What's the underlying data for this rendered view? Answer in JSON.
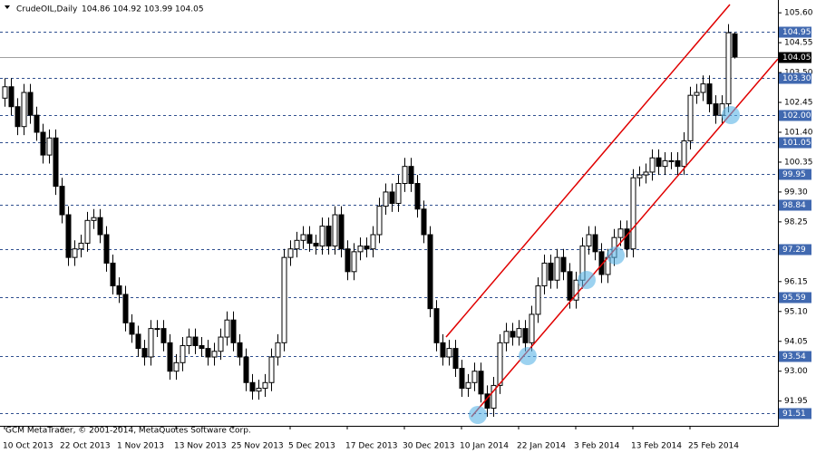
{
  "chart_data": {
    "type": "candlestick",
    "title": "CrudeOIL,Daily",
    "subtitle": "104.86 104.92 103.99 104.05",
    "footer": "GCM MetaTrader, © 2001-2014, MetaQuotes Software Corp.",
    "open": [
      102.6,
      103.0,
      102.3,
      101.6,
      102.8,
      102.0,
      101.4,
      100.6,
      101.2,
      99.5,
      98.5,
      97.0,
      97.3,
      97.5,
      98.3,
      98.4,
      97.8,
      96.8,
      96.0,
      95.7,
      94.7,
      94.3,
      93.8,
      93.5,
      94.5,
      94.5,
      94.0,
      93.0,
      93.3,
      93.9,
      94.2,
      93.9,
      93.8,
      93.5,
      93.7,
      94.2,
      94.8,
      94.0,
      93.5,
      92.6,
      92.3,
      92.4,
      92.6,
      93.5,
      94.0,
      97.0,
      97.3,
      97.6,
      97.8,
      97.5,
      97.4,
      98.1,
      97.4,
      98.5,
      97.3,
      96.5,
      97.2,
      97.4,
      97.3,
      97.8,
      98.8,
      99.3,
      98.9,
      99.6,
      100.2,
      99.6,
      98.7,
      97.8,
      95.2,
      94.0,
      93.5,
      93.8,
      93.1,
      92.4,
      92.6,
      93.0,
      92.2,
      91.7,
      92.5,
      94.0,
      94.4,
      94.2,
      94.5,
      94.0,
      95.0,
      96.0,
      96.8,
      96.2,
      97.0,
      96.5,
      95.5,
      96.2,
      97.4,
      97.8,
      97.2,
      96.4,
      97.0,
      97.7,
      98.0,
      97.3,
      99.8,
      99.9,
      100.0,
      100.5,
      100.2,
      100.4,
      100.4,
      100.2,
      101.1,
      102.7,
      102.8,
      103.1,
      102.4,
      102.0,
      102.4,
      104.86
    ],
    "high": [
      103.3,
      103.3,
      102.6,
      103.1,
      103.1,
      102.3,
      101.7,
      101.5,
      101.5,
      99.8,
      98.8,
      97.6,
      97.8,
      98.6,
      98.7,
      98.7,
      98.1,
      97.1,
      96.3,
      96.0,
      95.0,
      94.6,
      94.1,
      94.8,
      94.8,
      94.8,
      94.3,
      93.6,
      94.2,
      94.5,
      94.5,
      94.2,
      94.1,
      94.0,
      94.5,
      95.1,
      95.1,
      94.3,
      93.8,
      92.9,
      92.7,
      92.9,
      93.8,
      94.3,
      97.3,
      97.6,
      97.9,
      98.1,
      98.1,
      97.8,
      98.4,
      98.4,
      98.8,
      98.8,
      97.6,
      97.5,
      97.7,
      97.7,
      98.1,
      99.1,
      99.6,
      99.6,
      99.9,
      100.5,
      100.5,
      99.9,
      99.0,
      98.1,
      95.5,
      94.3,
      94.1,
      94.1,
      93.4,
      92.9,
      93.3,
      93.3,
      92.5,
      92.8,
      94.3,
      94.7,
      94.7,
      94.8,
      94.8,
      95.3,
      96.3,
      97.1,
      97.1,
      97.3,
      97.3,
      96.8,
      96.5,
      97.7,
      98.1,
      98.1,
      97.5,
      97.3,
      98.0,
      98.3,
      98.3,
      100.1,
      100.2,
      100.3,
      100.8,
      100.8,
      100.7,
      100.7,
      100.7,
      101.4,
      103.0,
      103.1,
      103.4,
      103.4,
      102.7,
      102.7,
      105.2,
      104.92
    ],
    "low": [
      102.3,
      102.0,
      101.3,
      101.3,
      101.7,
      101.1,
      100.3,
      100.3,
      99.2,
      98.2,
      96.7,
      96.7,
      97.0,
      97.2,
      98.0,
      97.5,
      96.5,
      95.7,
      95.4,
      94.4,
      94.0,
      93.5,
      93.2,
      93.2,
      94.2,
      93.7,
      92.7,
      92.7,
      93.0,
      93.6,
      93.6,
      93.5,
      93.2,
      93.2,
      93.4,
      93.9,
      93.7,
      93.2,
      92.3,
      92.0,
      92.0,
      92.1,
      92.3,
      93.2,
      93.7,
      96.7,
      97.0,
      97.3,
      97.2,
      97.1,
      97.1,
      97.1,
      97.1,
      97.0,
      96.2,
      96.2,
      96.9,
      97.0,
      97.0,
      97.5,
      98.5,
      98.6,
      98.6,
      99.3,
      99.3,
      98.4,
      97.5,
      94.9,
      93.7,
      93.2,
      93.2,
      92.8,
      92.1,
      92.1,
      92.3,
      91.9,
      91.4,
      91.4,
      92.2,
      93.7,
      93.9,
      93.9,
      93.7,
      93.7,
      94.7,
      95.7,
      95.9,
      95.9,
      96.2,
      95.2,
      95.2,
      95.9,
      97.1,
      96.9,
      96.1,
      96.1,
      96.7,
      97.4,
      97.0,
      97.0,
      99.5,
      99.6,
      99.7,
      99.9,
      99.9,
      100.1,
      99.9,
      99.9,
      100.8,
      102.4,
      102.5,
      102.1,
      101.7,
      101.7,
      102.1,
      103.99
    ],
    "close": [
      103.0,
      102.3,
      101.6,
      102.8,
      102.0,
      101.4,
      100.6,
      101.2,
      99.5,
      98.5,
      97.0,
      97.3,
      97.5,
      98.3,
      98.4,
      97.8,
      96.8,
      96.0,
      95.7,
      94.7,
      94.3,
      93.8,
      93.5,
      94.5,
      94.5,
      94.0,
      93.0,
      93.3,
      93.9,
      94.2,
      93.9,
      93.8,
      93.5,
      93.7,
      94.2,
      94.8,
      94.0,
      93.5,
      92.6,
      92.3,
      92.4,
      92.6,
      93.5,
      94.0,
      97.0,
      97.3,
      97.6,
      97.8,
      97.5,
      97.4,
      98.1,
      97.4,
      98.5,
      97.3,
      96.5,
      97.2,
      97.4,
      97.3,
      97.8,
      98.8,
      99.3,
      98.9,
      99.6,
      100.2,
      99.6,
      98.7,
      97.8,
      95.2,
      94.0,
      93.5,
      93.8,
      93.1,
      92.4,
      92.6,
      93.0,
      92.2,
      91.7,
      92.5,
      94.0,
      94.4,
      94.2,
      94.5,
      94.0,
      95.0,
      96.0,
      96.8,
      96.2,
      97.0,
      96.5,
      95.5,
      96.2,
      97.4,
      97.8,
      97.2,
      96.4,
      97.0,
      97.7,
      98.0,
      97.3,
      99.8,
      99.9,
      100.0,
      100.5,
      100.2,
      100.4,
      100.4,
      100.2,
      101.1,
      102.7,
      102.8,
      103.1,
      102.4,
      102.0,
      102.4,
      104.9,
      104.05
    ],
    "up_color": "#ffffff",
    "down_color": "#000000",
    "ylim": [
      91.08,
      106.05
    ],
    "yticks": [
      {
        "value": 105.6,
        "label": "105.60"
      },
      104.55,
      {
        "value": 103.5,
        "label": "103.50"
      },
      102.45,
      {
        "value": 101.4,
        "label": "101.40"
      },
      100.35,
      {
        "value": 99.3,
        "label": "99.30"
      },
      98.25,
      {
        "value": 97.2,
        "label": "97.20"
      },
      96.15,
      {
        "value": 95.1,
        "label": "95.10"
      },
      94.05,
      {
        "value": 93.0,
        "label": "93.00"
      },
      91.95
    ],
    "levels": [
      104.95,
      {
        "value": 103.3,
        "label": "103.30"
      },
      {
        "value": 102.0,
        "label": "102.00"
      },
      101.05,
      99.95,
      98.84,
      97.29,
      95.59,
      93.54,
      91.51
    ],
    "current_price": 104.05,
    "xticks": [
      {
        "value": 0,
        "label": "10 Oct 2013"
      },
      {
        "value": 9,
        "label": "22 Oct 2013"
      },
      {
        "value": 18,
        "label": "1 Nov 2013"
      },
      {
        "value": 27,
        "label": "13 Nov 2013"
      },
      {
        "value": 36,
        "label": "25 Nov 2013"
      },
      {
        "value": 45,
        "label": "5 Dec 2013"
      },
      {
        "value": 54,
        "label": "17 Dec 2013"
      },
      {
        "value": 63,
        "label": "30 Dec 2013"
      },
      {
        "value": 72,
        "label": "10 Jan 2014"
      },
      {
        "value": 81,
        "label": "22 Jan 2014"
      },
      {
        "value": 90,
        "label": "3 Feb 2014"
      },
      {
        "value": 99,
        "label": "13 Feb 2014"
      },
      {
        "value": 108,
        "label": "25 Feb 2014"
      }
    ]
  }
}
